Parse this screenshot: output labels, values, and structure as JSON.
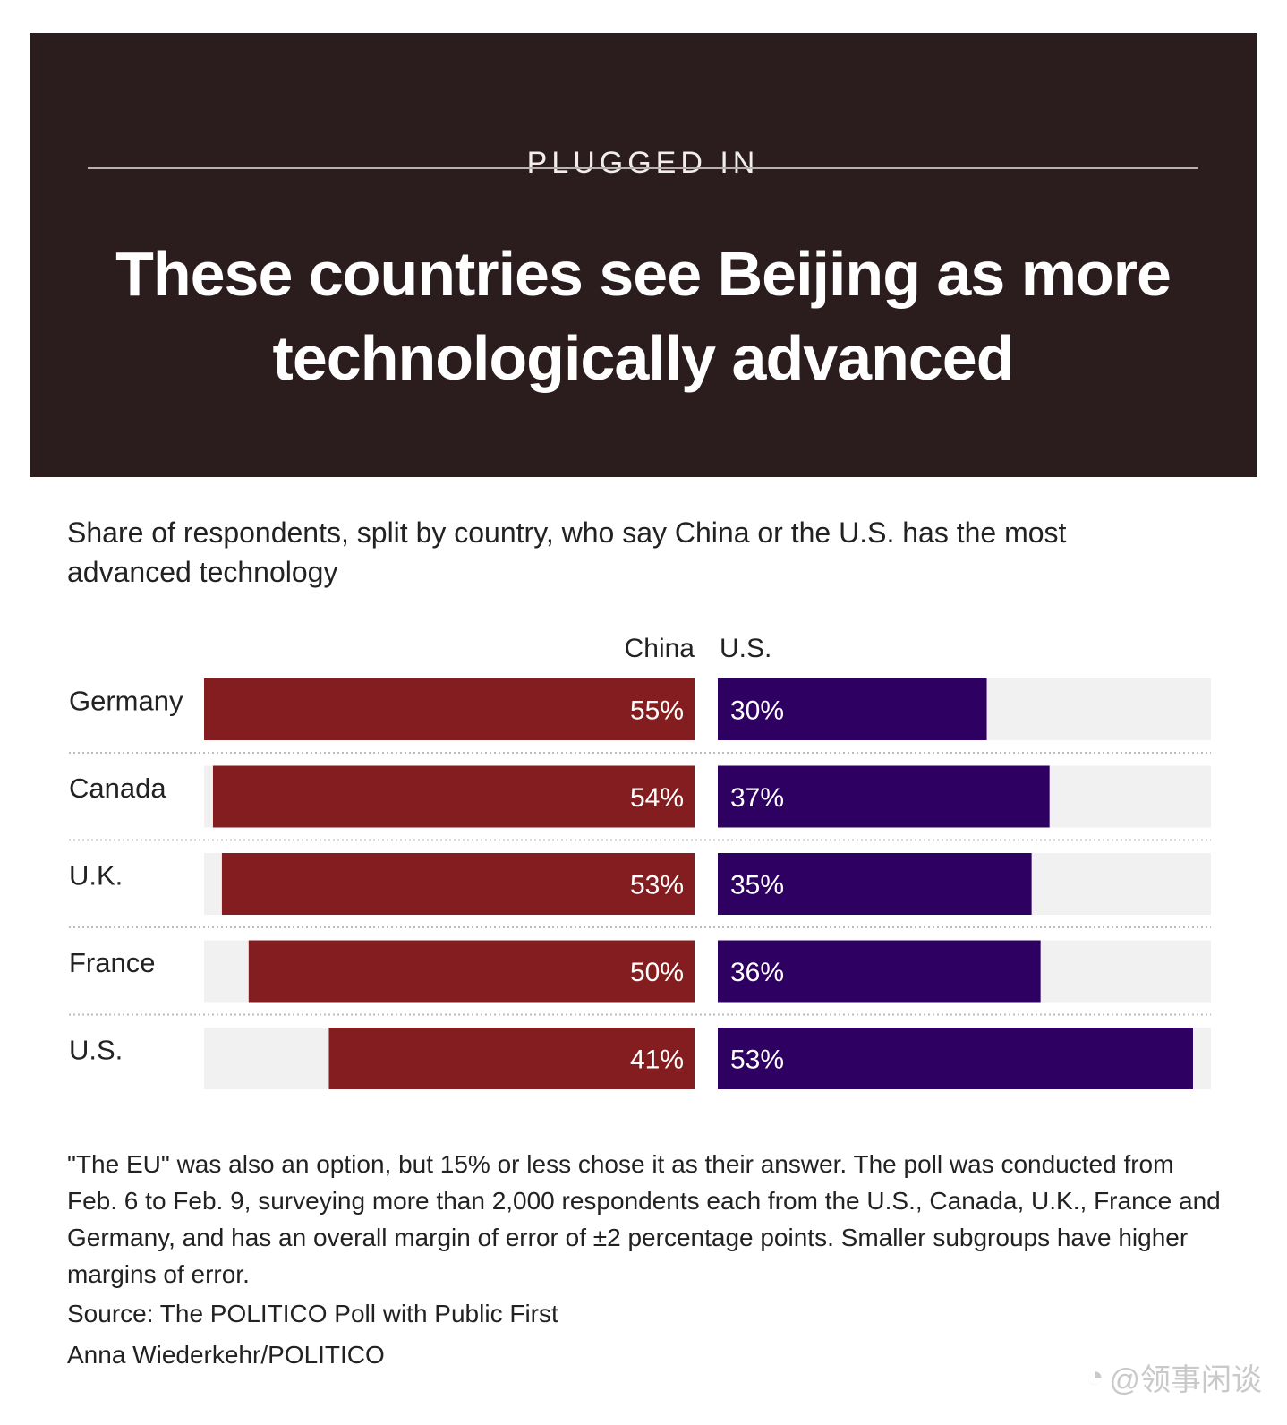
{
  "header": {
    "kicker": "PLUGGED IN",
    "title": "These countries see Beijing as more technologically advanced"
  },
  "subtitle": "Share of respondents, split by country, who say China or the U.S. has the most advanced technology",
  "chart_data": {
    "type": "bar",
    "categories": [
      "Germany",
      "Canada",
      "U.K.",
      "France",
      "U.S."
    ],
    "series": [
      {
        "name": "China",
        "values": [
          55,
          54,
          53,
          50,
          41
        ],
        "labels": [
          "55%",
          "54%",
          "53%",
          "50%",
          "41%"
        ],
        "color": "#841d1f"
      },
      {
        "name": "U.S.",
        "values": [
          30,
          37,
          35,
          36,
          53
        ],
        "labels": [
          "30%",
          "37%",
          "35%",
          "36%",
          "53%"
        ],
        "color": "#2d0062"
      }
    ],
    "xlim": [
      0,
      55
    ],
    "unit": "%",
    "track_color": "#f1f1f1"
  },
  "footer": {
    "note": "\"The EU\" was also an option, but 15% or less chose it as their answer. The poll was conducted from Feb. 6 to Feb. 9, surveying more than 2,000 respondents each from the U.S., Canada, U.K., France and Germany, and has an overall margin of error of ±2 percentage points. Smaller subgroups have higher margins of error.",
    "source": "Source: The POLITICO Poll with Public First",
    "credit": "Anna Wiederkehr/POLITICO"
  },
  "watermark": {
    "icon": "weibo-icon",
    "text": "@领事闲谈"
  }
}
